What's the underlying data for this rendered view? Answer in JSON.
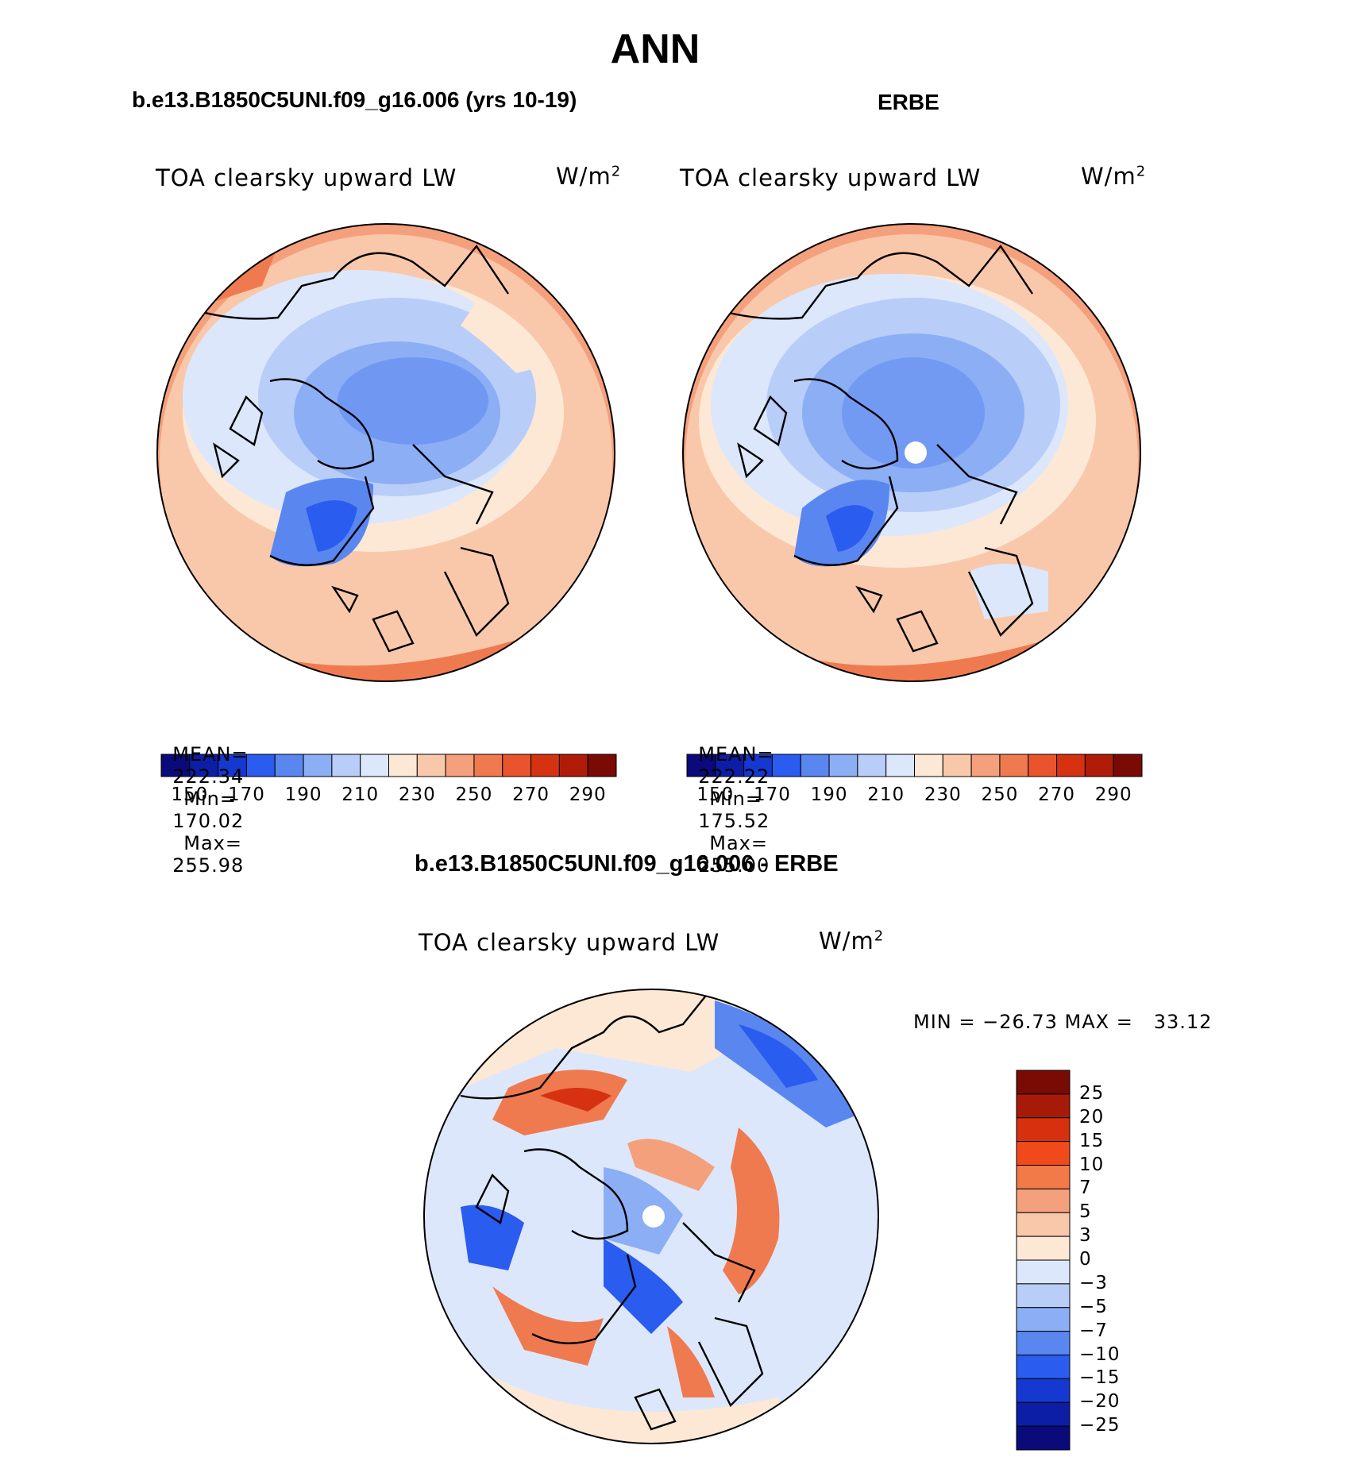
{
  "page_title": "ANN",
  "panels": [
    {
      "title": "b.e13.B1850C5UNI.f09_g16.006 (yrs 10-19)",
      "variable": "TOA clearsky upward LW",
      "units": "W/m",
      "units_sup": "2",
      "stats": {
        "mean_label": "MEAN=",
        "mean": "222.34",
        "min_label": "Min=",
        "min": "170.02",
        "max_label": "Max=",
        "max": "255.98"
      }
    },
    {
      "title": "ERBE",
      "variable": "TOA clearsky upward LW",
      "units": "W/m",
      "units_sup": "2",
      "stats": {
        "mean_label": "MEAN=",
        "mean": "222.22",
        "min_label": "Min=",
        "min": "175.52",
        "max_label": "Max=",
        "max": "255.00"
      }
    }
  ],
  "diff_panel": {
    "title": "b.e13.B1850C5UNI.f09_g16.006 - ERBE",
    "variable": "TOA clearsky upward LW",
    "units": "W/m",
    "units_sup": "2",
    "minmax": "MIN = −26.73 MAX =   33.12"
  },
  "colorbar_horizontal": {
    "labels": [
      "150",
      "170",
      "190",
      "210",
      "230",
      "250",
      "270",
      "290"
    ],
    "colors": [
      "#0a0a7a",
      "#0c1ea6",
      "#1538d0",
      "#2a5cf0",
      "#5a86f0",
      "#8caef5",
      "#b8cdf8",
      "#dce7fb",
      "#fde8d6",
      "#f9c8aa",
      "#f5a07c",
      "#f07a50",
      "#e9542c",
      "#d63212",
      "#b01c08",
      "#7a0a04"
    ]
  },
  "colorbar_vertical": {
    "labels": [
      "25",
      "20",
      "15",
      "10",
      "7",
      "5",
      "3",
      "0",
      "−3",
      "−5",
      "−7",
      "−10",
      "−15",
      "−20",
      "−25"
    ],
    "colors": [
      "#7a0a04",
      "#a81a08",
      "#d6300e",
      "#f04a1c",
      "#f27a48",
      "#f5a07c",
      "#f9c8aa",
      "#fde8d6",
      "#dce7fb",
      "#b8cdf8",
      "#8caef5",
      "#5a86f0",
      "#2a5cf0",
      "#1538d0",
      "#0c1ea6",
      "#0a0a7a"
    ]
  }
}
